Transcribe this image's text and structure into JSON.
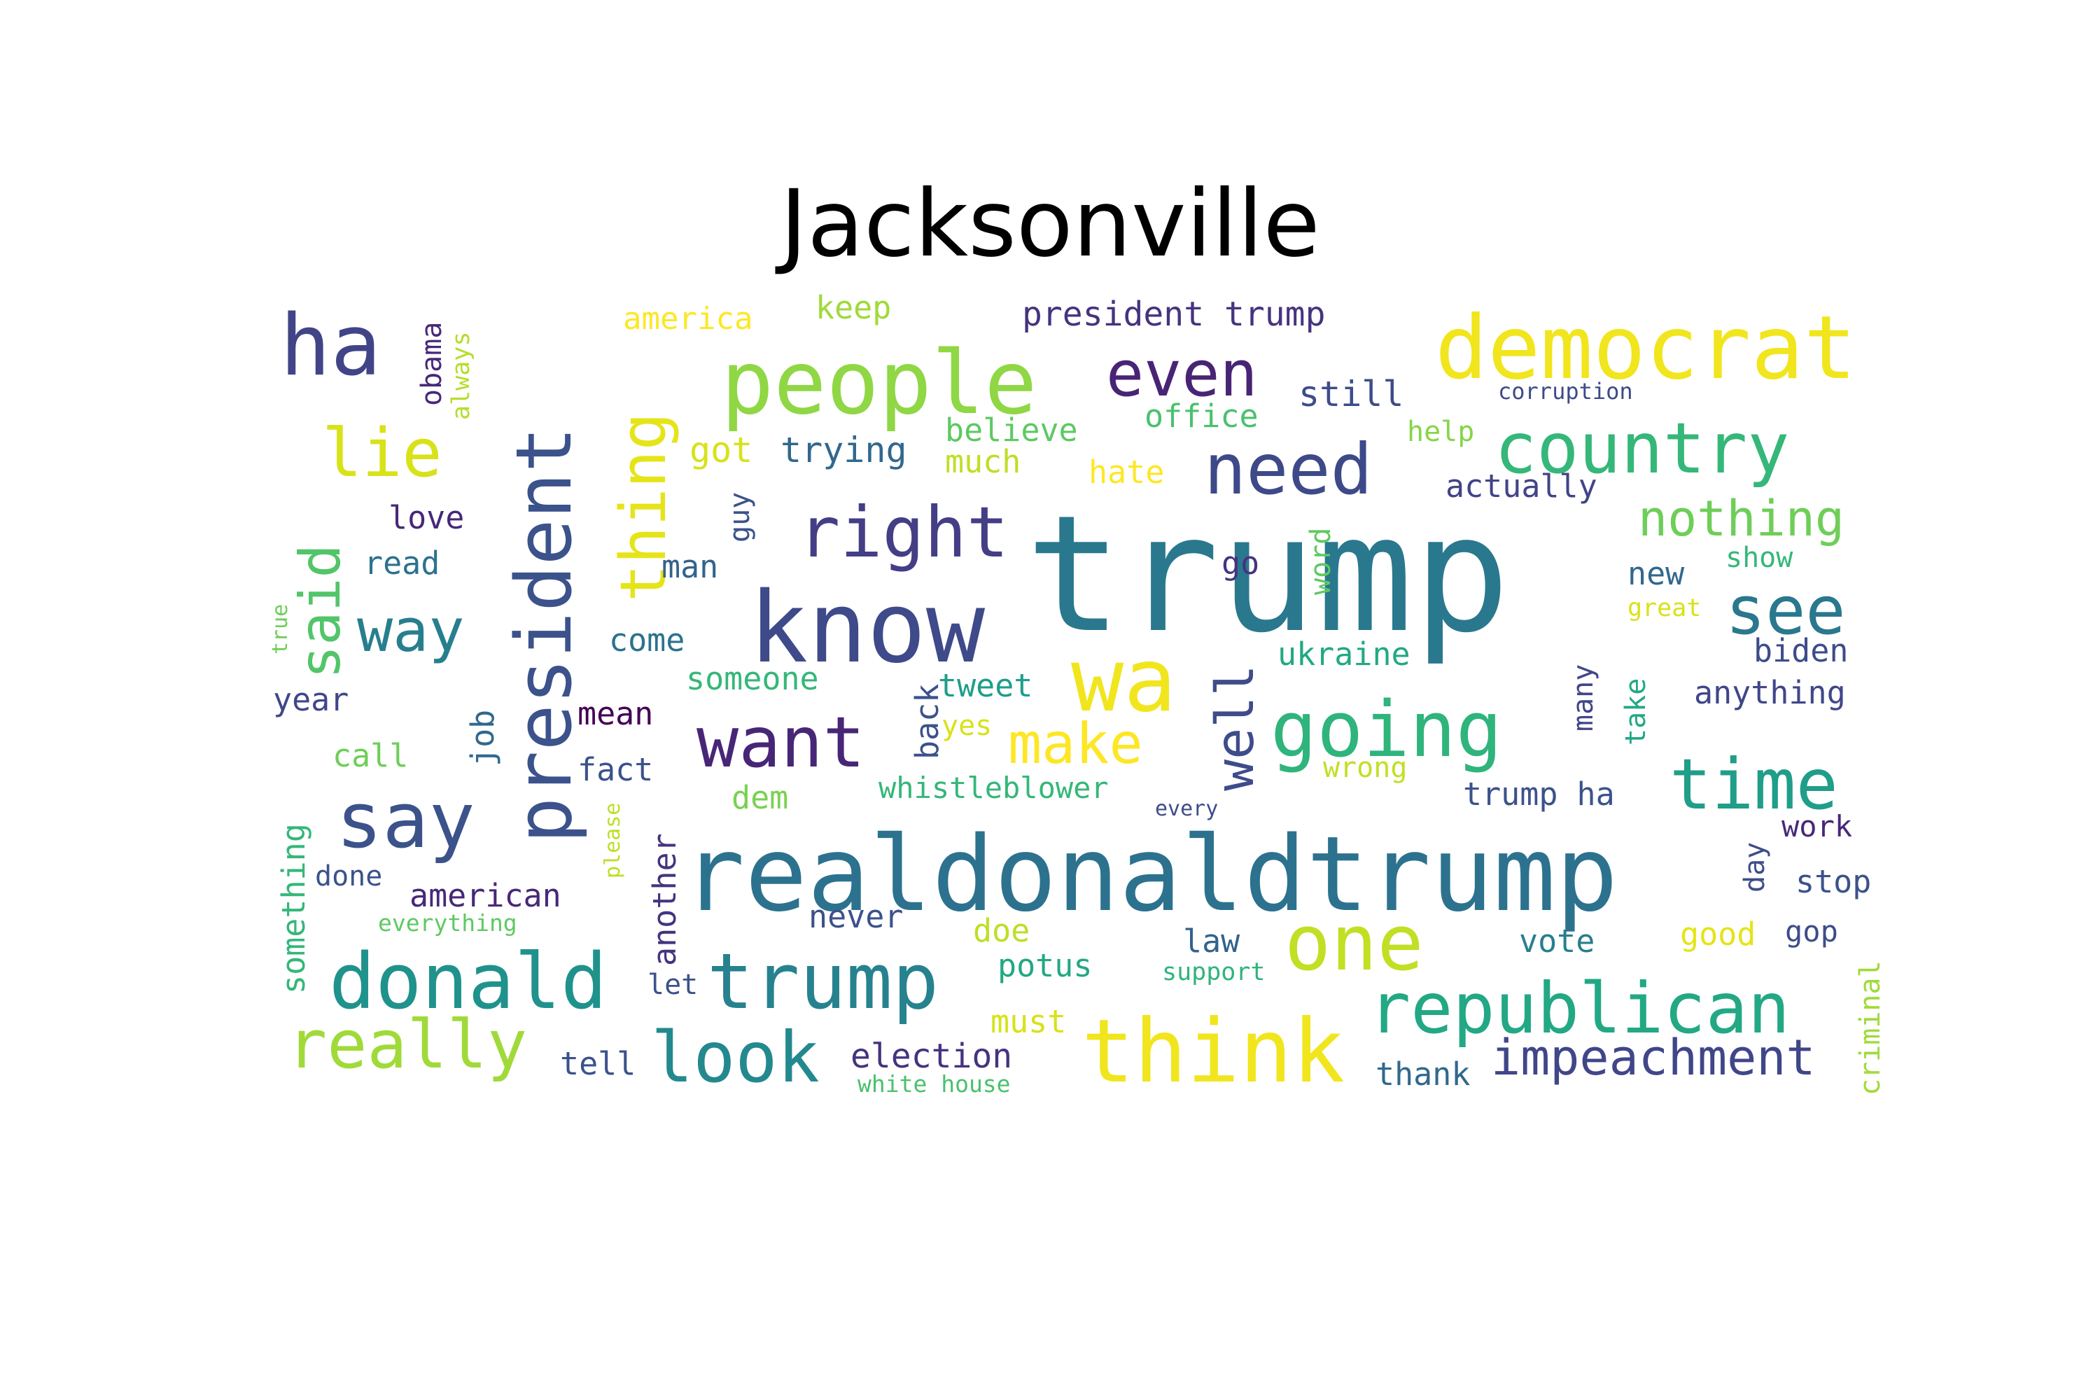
{
  "title": "Jacksonville",
  "words": [
    {
      "text": "trump",
      "color": "#2a788e"
    },
    {
      "text": "realdonaldtrump",
      "color": "#2c728e"
    },
    {
      "text": "know",
      "color": "#3e4a89"
    },
    {
      "text": "president",
      "color": "#3b528b"
    },
    {
      "text": "democrat",
      "color": "#f1e51d"
    },
    {
      "text": "people",
      "color": "#8fd744"
    },
    {
      "text": "wa",
      "color": "#f1e51d"
    },
    {
      "text": "think",
      "color": "#f1e51d"
    },
    {
      "text": "country",
      "color": "#35b779"
    },
    {
      "text": "republican",
      "color": "#22a884"
    },
    {
      "text": "going",
      "color": "#2fb47c"
    },
    {
      "text": "donald",
      "color": "#20928c"
    },
    {
      "text": "trump",
      "color": "#26828e"
    },
    {
      "text": "one",
      "color": "#c2df23"
    },
    {
      "text": "need",
      "color": "#3e4989"
    },
    {
      "text": "ha",
      "color": "#414487"
    },
    {
      "text": "say",
      "color": "#3b528b"
    },
    {
      "text": "want",
      "color": "#482677"
    },
    {
      "text": "right",
      "color": "#433e85"
    },
    {
      "text": "time",
      "color": "#1f9e89"
    },
    {
      "text": "look",
      "color": "#23898e"
    },
    {
      "text": "really",
      "color": "#a0da39"
    },
    {
      "text": "even",
      "color": "#482475"
    },
    {
      "text": "make",
      "color": "#fde725"
    },
    {
      "text": "thing",
      "color": "#e5e419"
    },
    {
      "text": "said",
      "color": "#52c569"
    },
    {
      "text": "way",
      "color": "#277f8e"
    },
    {
      "text": "lie",
      "color": "#d8e219"
    },
    {
      "text": "see",
      "color": "#2a788e"
    },
    {
      "text": "impeachment",
      "color": "#404688"
    },
    {
      "text": "nothing",
      "color": "#6ece58"
    },
    {
      "text": "well",
      "color": "#3e4c8a"
    },
    {
      "text": "president trump",
      "color": "#46337f"
    },
    {
      "text": "america",
      "color": "#fde725"
    },
    {
      "text": "keep",
      "color": "#a0da39"
    },
    {
      "text": "still",
      "color": "#3e4c8a"
    },
    {
      "text": "office",
      "color": "#4ac16d"
    },
    {
      "text": "believe",
      "color": "#5ec962"
    },
    {
      "text": "trying",
      "color": "#31688e"
    },
    {
      "text": "got",
      "color": "#d8e219"
    },
    {
      "text": "much",
      "color": "#bddf26"
    },
    {
      "text": "hate",
      "color": "#fde725"
    },
    {
      "text": "help",
      "color": "#86d549"
    },
    {
      "text": "corruption",
      "color": "#3e4a89"
    },
    {
      "text": "actually",
      "color": "#414487"
    },
    {
      "text": "love",
      "color": "#482878"
    },
    {
      "text": "read",
      "color": "#2c728e"
    },
    {
      "text": "man",
      "color": "#33638d"
    },
    {
      "text": "guy",
      "color": "#3b528b"
    },
    {
      "text": "obama",
      "color": "#482878"
    },
    {
      "text": "always",
      "color": "#b5de2b"
    },
    {
      "text": "go",
      "color": "#46337f"
    },
    {
      "text": "word",
      "color": "#5ec962"
    },
    {
      "text": "show",
      "color": "#35b779"
    },
    {
      "text": "new",
      "color": "#31688e"
    },
    {
      "text": "great",
      "color": "#d8e219"
    },
    {
      "text": "ukraine",
      "color": "#22a884"
    },
    {
      "text": "biden",
      "color": "#3e4c8a"
    },
    {
      "text": "anything",
      "color": "#404688"
    },
    {
      "text": "come",
      "color": "#2c728e"
    },
    {
      "text": "someone",
      "color": "#35b779"
    },
    {
      "text": "tweet",
      "color": "#1f9e89"
    },
    {
      "text": "back",
      "color": "#3b528b"
    },
    {
      "text": "yes",
      "color": "#d8e219"
    },
    {
      "text": "mean",
      "color": "#440154"
    },
    {
      "text": "year",
      "color": "#404688"
    },
    {
      "text": "job",
      "color": "#31688e"
    },
    {
      "text": "call",
      "color": "#6ece58"
    },
    {
      "text": "fact",
      "color": "#3b528b"
    },
    {
      "text": "dem",
      "color": "#7ad151"
    },
    {
      "text": "whistleblower",
      "color": "#35b779"
    },
    {
      "text": "every",
      "color": "#3e4c8a"
    },
    {
      "text": "wrong",
      "color": "#c2df23"
    },
    {
      "text": "trump ha",
      "color": "#3b528b"
    },
    {
      "text": "many",
      "color": "#404688"
    },
    {
      "text": "take",
      "color": "#22a884"
    },
    {
      "text": "work",
      "color": "#482878"
    },
    {
      "text": "day",
      "color": "#3e4c8a"
    },
    {
      "text": "stop",
      "color": "#3b528b"
    },
    {
      "text": "true",
      "color": "#6ece58"
    },
    {
      "text": "something",
      "color": "#35b779"
    },
    {
      "text": "done",
      "color": "#3b528b"
    },
    {
      "text": "american",
      "color": "#482878"
    },
    {
      "text": "everything",
      "color": "#5ec962"
    },
    {
      "text": "please",
      "color": "#bddf26"
    },
    {
      "text": "another",
      "color": "#46337f"
    },
    {
      "text": "let",
      "color": "#3b528b"
    },
    {
      "text": "never",
      "color": "#3b528b"
    },
    {
      "text": "doe",
      "color": "#bddf26"
    },
    {
      "text": "potus",
      "color": "#22a884"
    },
    {
      "text": "law",
      "color": "#33638d"
    },
    {
      "text": "support",
      "color": "#2fb47c"
    },
    {
      "text": "vote",
      "color": "#277f8e"
    },
    {
      "text": "good",
      "color": "#e5e419"
    },
    {
      "text": "gop",
      "color": "#3e4c8a"
    },
    {
      "text": "criminal",
      "color": "#a0da39"
    },
    {
      "text": "must",
      "color": "#d8e219"
    },
    {
      "text": "election",
      "color": "#46337f"
    },
    {
      "text": "white house",
      "color": "#4ac16d"
    },
    {
      "text": "tell",
      "color": "#3b528b"
    },
    {
      "text": "thank",
      "color": "#31688e"
    }
  ]
}
